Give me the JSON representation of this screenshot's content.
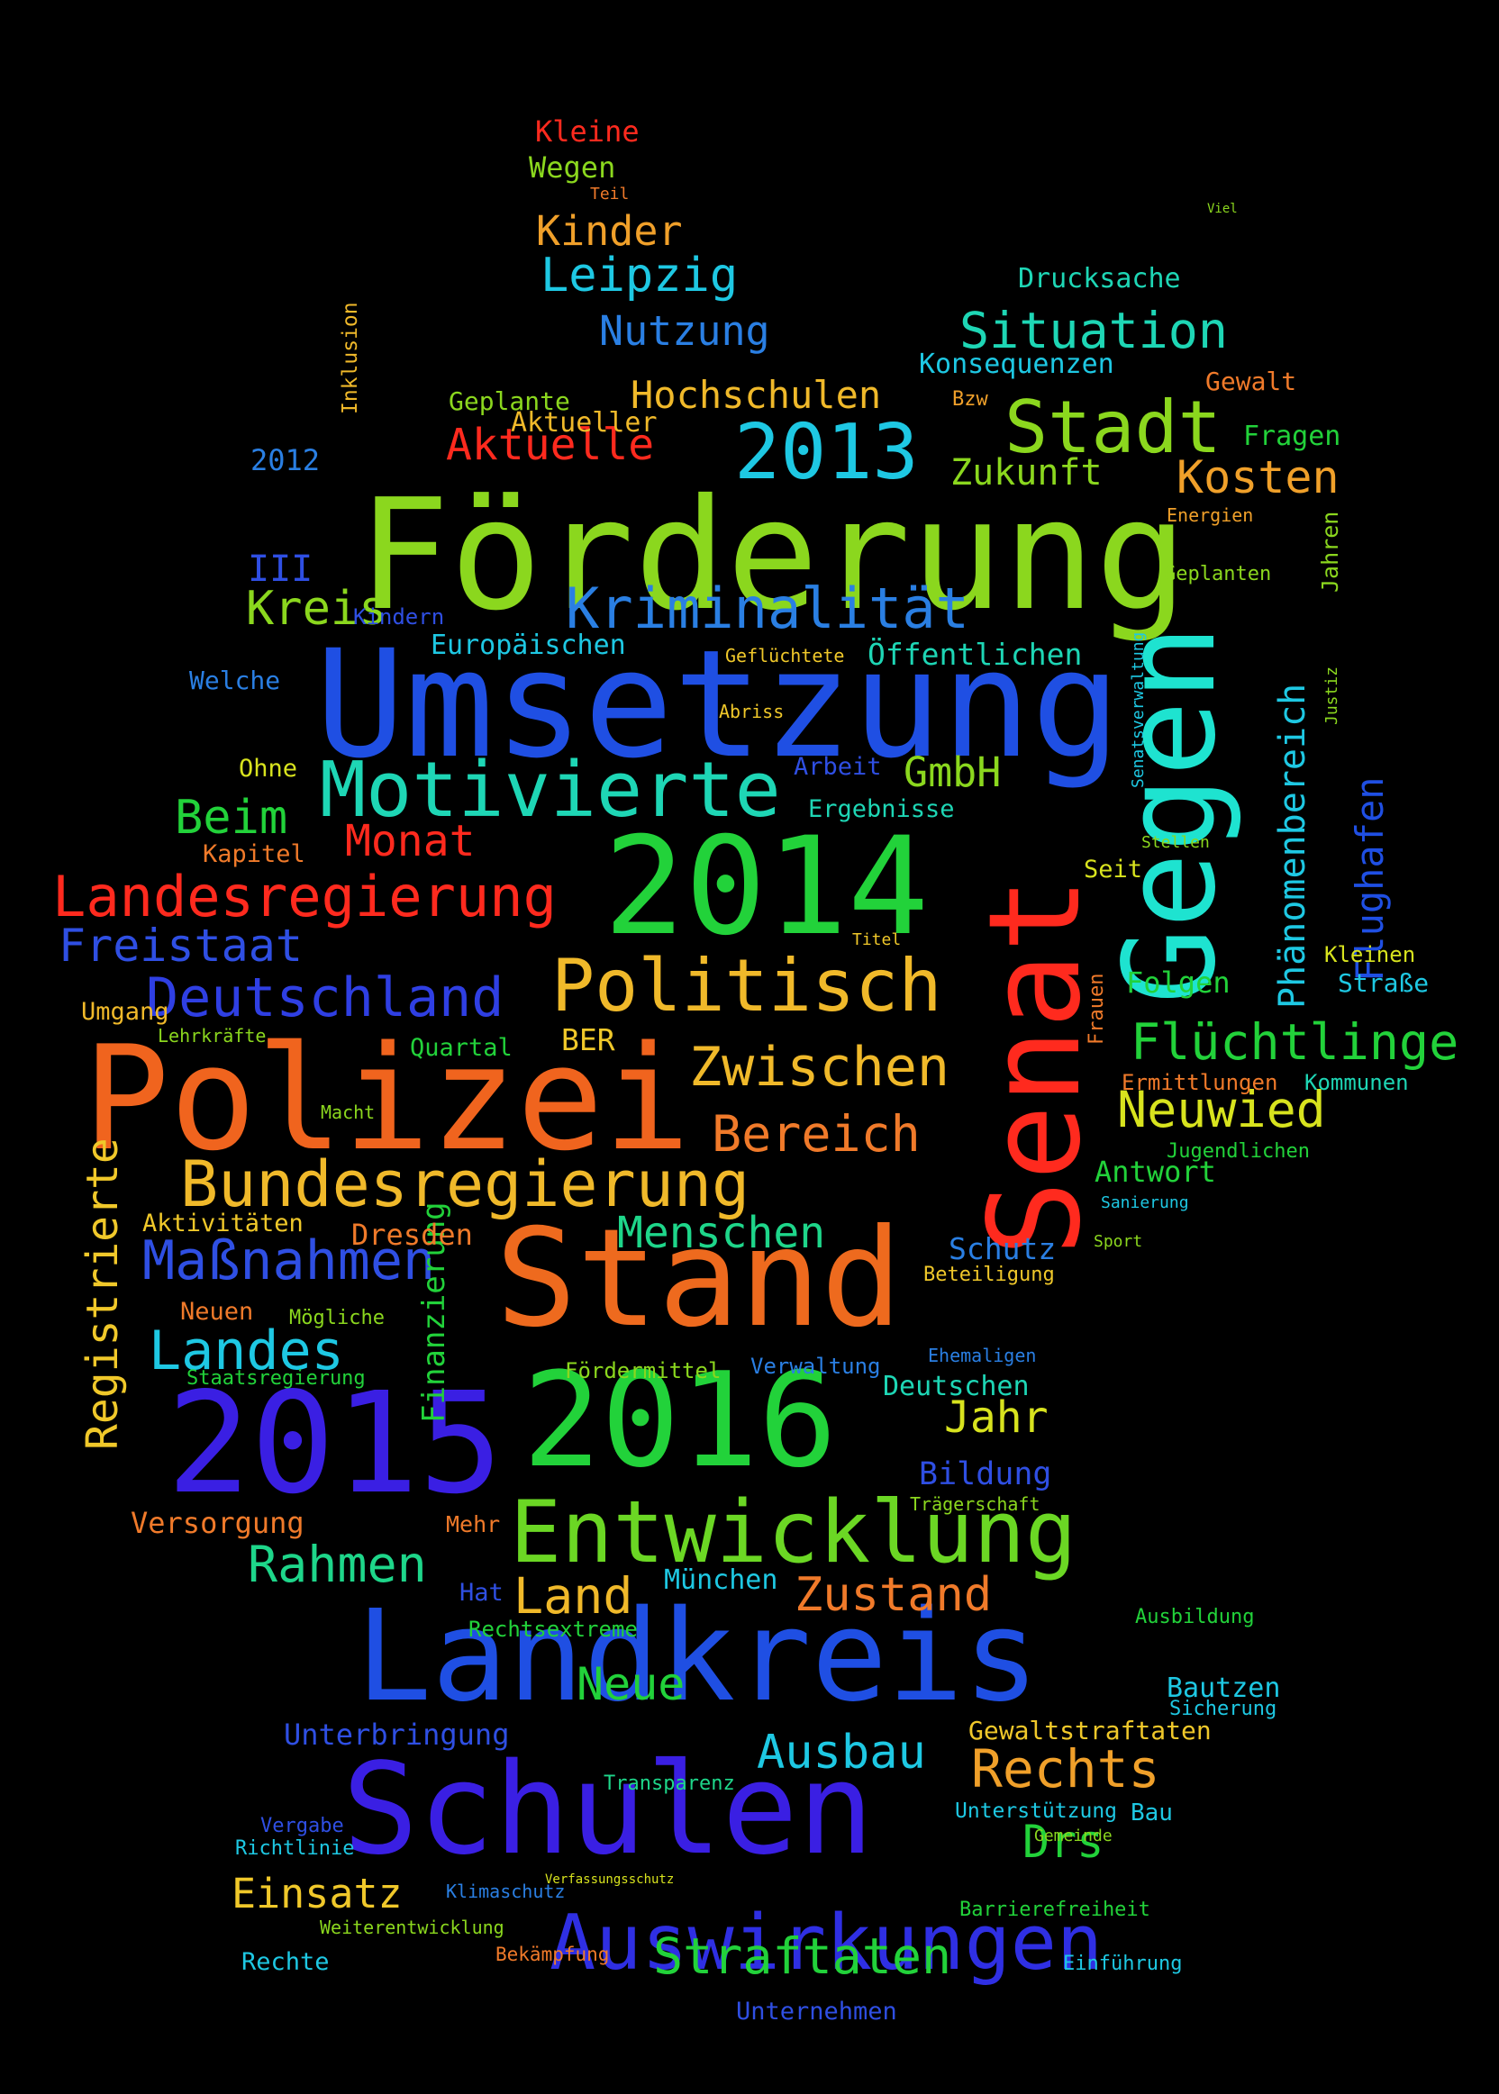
{
  "words": [
    {
      "t": "Förderung",
      "c": "#8bd71e"
    },
    {
      "t": "Umsetzung",
      "c": "#1f4fe3"
    },
    {
      "t": "Polizei",
      "c": "#f0641e"
    },
    {
      "t": "Stand",
      "c": "#ee6a1e"
    },
    {
      "t": "Landkreis",
      "c": "#1f4fe3"
    },
    {
      "t": "Schulen",
      "c": "#3a1fe3"
    },
    {
      "t": "2014",
      "c": "#22d23a"
    },
    {
      "t": "2015",
      "c": "#3a1fe3"
    },
    {
      "t": "2016",
      "c": "#22d23a"
    },
    {
      "t": "Senat",
      "c": "#ff2a1e"
    },
    {
      "t": "Gegen",
      "c": "#1ee3d0"
    },
    {
      "t": "Entwicklung",
      "c": "#6bd724"
    },
    {
      "t": "Motivierte",
      "c": "#1ed6b5"
    },
    {
      "t": "Bundesregierung",
      "c": "#f0b92a"
    },
    {
      "t": "Politisch",
      "c": "#f0b92a"
    },
    {
      "t": "Auswirkungen",
      "c": "#2f2fe3"
    },
    {
      "t": "Stadt",
      "c": "#8bd71e"
    },
    {
      "t": "2013",
      "c": "#1ec8e3"
    },
    {
      "t": "Landesregierung",
      "c": "#ff2a1e"
    },
    {
      "t": "Deutschland",
      "c": "#2f3fe3"
    },
    {
      "t": "Kriminalität",
      "c": "#2a7fe3"
    },
    {
      "t": "Maßnahmen",
      "c": "#2f4fe3"
    },
    {
      "t": "Registrierte",
      "c": "#f0c82a"
    },
    {
      "t": "Zwischen",
      "c": "#f0b92a"
    },
    {
      "t": "Straftaten",
      "c": "#22d23a"
    },
    {
      "t": "Flüchtlinge",
      "c": "#22d23a"
    },
    {
      "t": "Neuwied",
      "c": "#d8e31e"
    },
    {
      "t": "Rechts",
      "c": "#f0a02a"
    },
    {
      "t": "Phänomenbereich",
      "c": "#1ec8e3"
    },
    {
      "t": "Flughafen",
      "c": "#1f4fe3"
    },
    {
      "t": "Leipzig",
      "c": "#1ec8e3"
    },
    {
      "t": "Situation",
      "c": "#1ed6b5"
    },
    {
      "t": "Kosten",
      "c": "#f0a02a"
    },
    {
      "t": "Landes",
      "c": "#1ec8e3"
    },
    {
      "t": "Menschen",
      "c": "#1ed68a"
    },
    {
      "t": "Bereich",
      "c": "#f07a2a"
    },
    {
      "t": "Rahmen",
      "c": "#1ed68a"
    },
    {
      "t": "Land",
      "c": "#f0b92a"
    },
    {
      "t": "Zustand",
      "c": "#f07a2a"
    },
    {
      "t": "Freistaat",
      "c": "#2f4fe3"
    },
    {
      "t": "Beim",
      "c": "#22d23a"
    },
    {
      "t": "Kreis",
      "c": "#8bd71e"
    },
    {
      "t": "Aktuelle",
      "c": "#ff2a1e"
    },
    {
      "t": "Hochschulen",
      "c": "#f0b92a"
    },
    {
      "t": "Zukunft",
      "c": "#8bd71e"
    },
    {
      "t": "Nutzung",
      "c": "#2a7fe3"
    },
    {
      "t": "Kinder",
      "c": "#f0a02a"
    },
    {
      "t": "Monat",
      "c": "#ff2a1e"
    },
    {
      "t": "GmbH",
      "c": "#8bd71e"
    },
    {
      "t": "Öffentlichen",
      "c": "#1ed6b5"
    },
    {
      "t": "Europäischen",
      "c": "#1ec8e3"
    },
    {
      "t": "Neue",
      "c": "#22d23a"
    },
    {
      "t": "Ausbau",
      "c": "#1ec8e3"
    },
    {
      "t": "Einsatz",
      "c": "#f0c82a"
    },
    {
      "t": "Drs",
      "c": "#22d23a"
    },
    {
      "t": "Jahr",
      "c": "#d8e31e"
    },
    {
      "t": "Bildung",
      "c": "#2f4fe3"
    },
    {
      "t": "Finanzierung",
      "c": "#22d23a"
    },
    {
      "t": "Versorgung",
      "c": "#f07a2a"
    },
    {
      "t": "Dresden",
      "c": "#f07a2a"
    },
    {
      "t": "Antwort",
      "c": "#22d23a"
    },
    {
      "t": "Folgen",
      "c": "#22d23a"
    },
    {
      "t": "Kleinen",
      "c": "#d8e31e"
    },
    {
      "t": "Straße",
      "c": "#1ec8e3"
    },
    {
      "t": "Schutz",
      "c": "#2a7fe3"
    },
    {
      "t": "Deutschen",
      "c": "#1ed6b5"
    },
    {
      "t": "Unterbringung",
      "c": "#2f4fe3"
    },
    {
      "t": "Gewaltstraftaten",
      "c": "#f0c82a"
    },
    {
      "t": "Bautzen",
      "c": "#1ec8e3"
    },
    {
      "t": "München",
      "c": "#1ec8e3"
    },
    {
      "t": "Fragen",
      "c": "#22d23a"
    },
    {
      "t": "Gewalt",
      "c": "#f07a2a"
    },
    {
      "t": "Drucksache",
      "c": "#1ed6b5"
    },
    {
      "t": "Konsequenzen",
      "c": "#1ec8e3"
    },
    {
      "t": "Geplante",
      "c": "#8bd71e"
    },
    {
      "t": "Aktueller",
      "c": "#f0b92a"
    },
    {
      "t": "Wegen",
      "c": "#8bd71e"
    },
    {
      "t": "Kleine",
      "c": "#ff2a1e"
    },
    {
      "t": "Welche",
      "c": "#2a7fe3"
    },
    {
      "t": "Ohne",
      "c": "#d8e31e"
    },
    {
      "t": "Kapitel",
      "c": "#f07a2a"
    },
    {
      "t": "Umgang",
      "c": "#f0b92a"
    },
    {
      "t": "Quartal",
      "c": "#22d23a"
    },
    {
      "t": "Lehrkräfte",
      "c": "#8bd71e"
    },
    {
      "t": "Aktivitäten",
      "c": "#f0c82a"
    },
    {
      "t": "Neuen",
      "c": "#f07a2a"
    },
    {
      "t": "Mögliche",
      "c": "#8bd71e"
    },
    {
      "t": "Staatsregierung",
      "c": "#22d23a"
    },
    {
      "t": "Mehr",
      "c": "#f07a2a"
    },
    {
      "t": "Hat",
      "c": "#2f4fe3"
    },
    {
      "t": "Rechtsextreme",
      "c": "#22d23a"
    },
    {
      "t": "Transparenz",
      "c": "#1ed68a"
    },
    {
      "t": "Unterstützung",
      "c": "#1ec8e3"
    },
    {
      "t": "Bau",
      "c": "#1ec8e3"
    },
    {
      "t": "Ausbildung",
      "c": "#22d23a"
    },
    {
      "t": "Sicherung",
      "c": "#1ec8e3"
    },
    {
      "t": "Verwaltung",
      "c": "#2a7fe3"
    },
    {
      "t": "Fördermittel",
      "c": "#8bd71e"
    },
    {
      "t": "Ergebnisse",
      "c": "#1ed6b5"
    },
    {
      "t": "Arbeit",
      "c": "#2f4fe3"
    },
    {
      "t": "Seit",
      "c": "#d8e31e"
    },
    {
      "t": "Jahren",
      "c": "#8bd71e"
    },
    {
      "t": "BER",
      "c": "#f0c82a"
    },
    {
      "t": "Kommunen",
      "c": "#1ed6b5"
    },
    {
      "t": "Ermittlungen",
      "c": "#f07a2a"
    },
    {
      "t": "Frauen",
      "c": "#f07a2a"
    },
    {
      "t": "Jugendlichen",
      "c": "#22d23a"
    },
    {
      "t": "Ehemaligen",
      "c": "#2a7fe3"
    },
    {
      "t": "Beteiligung",
      "c": "#f0c82a"
    },
    {
      "t": "Trägerschaft",
      "c": "#8bd71e"
    },
    {
      "t": "Richtlinie",
      "c": "#1ec8e3"
    },
    {
      "t": "Vergabe",
      "c": "#2f4fe3"
    },
    {
      "t": "Rechte",
      "c": "#1ec8e3"
    },
    {
      "t": "Bekämpfung",
      "c": "#f07a2a"
    },
    {
      "t": "Weiterentwicklung",
      "c": "#8bd71e"
    },
    {
      "t": "Klimaschutz",
      "c": "#2a7fe3"
    },
    {
      "t": "Unternehmen",
      "c": "#2f4fe3"
    },
    {
      "t": "Einführung",
      "c": "#1ec8e3"
    },
    {
      "t": "Barrierefreiheit",
      "c": "#22d23a"
    },
    {
      "t": "Gemeinde",
      "c": "#8bd71e"
    },
    {
      "t": "III",
      "c": "#2f4fe3"
    },
    {
      "t": "2012",
      "c": "#2a7fe3"
    },
    {
      "t": "Kindern",
      "c": "#2f4fe3"
    },
    {
      "t": "Inklusion",
      "c": "#f0b92a"
    },
    {
      "t": "Geflüchtete",
      "c": "#f0c82a"
    },
    {
      "t": "Abriss",
      "c": "#f0c82a"
    },
    {
      "t": "Geplanten",
      "c": "#8bd71e"
    },
    {
      "t": "Energien",
      "c": "#f0a02a"
    },
    {
      "t": "Bzw",
      "c": "#f0a02a"
    },
    {
      "t": "Macht",
      "c": "#8bd71e"
    },
    {
      "t": "Titel",
      "c": "#f0c82a"
    },
    {
      "t": "Stellen",
      "c": "#8bd71e"
    },
    {
      "t": "Senatsverwaltung",
      "c": "#1ec8e3"
    },
    {
      "t": "Justiz",
      "c": "#8bd71e"
    },
    {
      "t": "Sport",
      "c": "#8bd71e"
    },
    {
      "t": "Sanierung",
      "c": "#1ec8e3"
    },
    {
      "t": "Teil",
      "c": "#f07a2a"
    },
    {
      "t": "Viel",
      "c": "#8bd71e"
    },
    {
      "t": "Verfassungsschutz",
      "c": "#d8e31e"
    }
  ]
}
